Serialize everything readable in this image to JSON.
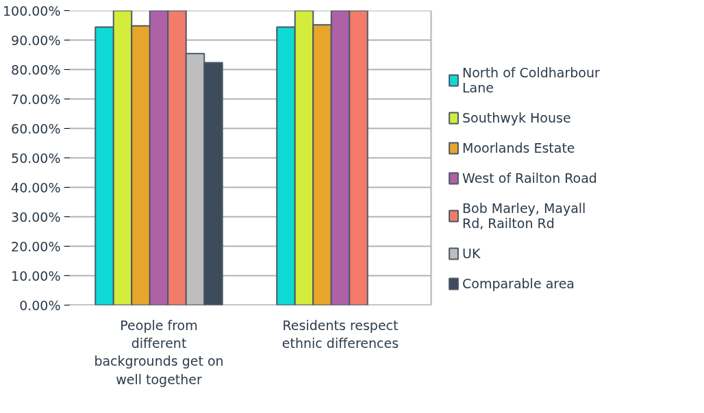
{
  "chart_data": {
    "type": "bar",
    "categories": [
      "People from different backgrounds get on well together",
      "Residents respect ethnic differences"
    ],
    "series": [
      {
        "name": "North of Coldharbour Lane",
        "color": "#0fd9d5",
        "values": [
          94.4,
          94.4
        ]
      },
      {
        "name": "Southwyk House",
        "color": "#d4ec3c",
        "values": [
          100,
          100
        ]
      },
      {
        "name": "Moorlands Estate",
        "color": "#e8a52b",
        "values": [
          94.8,
          95.2
        ]
      },
      {
        "name": "West of Railton Road",
        "color": "#ad62a6",
        "values": [
          100,
          100
        ]
      },
      {
        "name": "Bob Marley, Mayall Rd, Railton Rd",
        "color": "#f27c69",
        "values": [
          100,
          100
        ]
      },
      {
        "name": "UK",
        "color": "#bebebe",
        "values": [
          85.4,
          null
        ]
      },
      {
        "name": "Comparable area",
        "color": "#3d4b5c",
        "values": [
          82.3,
          null
        ]
      }
    ],
    "ylim": [
      0,
      100
    ],
    "yticks": [
      {
        "value": 0,
        "label": "0.00%"
      },
      {
        "value": 10,
        "label": "10.00%"
      },
      {
        "value": 20,
        "label": "20.00%"
      },
      {
        "value": 30,
        "label": "30.00%"
      },
      {
        "value": 40,
        "label": "40.00%"
      },
      {
        "value": 50,
        "label": "50.00%"
      },
      {
        "value": 60,
        "label": "60.00%"
      },
      {
        "value": 70,
        "label": "70.00%"
      },
      {
        "value": 80,
        "label": "80.00%"
      },
      {
        "value": 90,
        "label": "90.00%"
      },
      {
        "value": 100,
        "label": "100.00%"
      }
    ],
    "grid": "y",
    "legend": "right"
  }
}
